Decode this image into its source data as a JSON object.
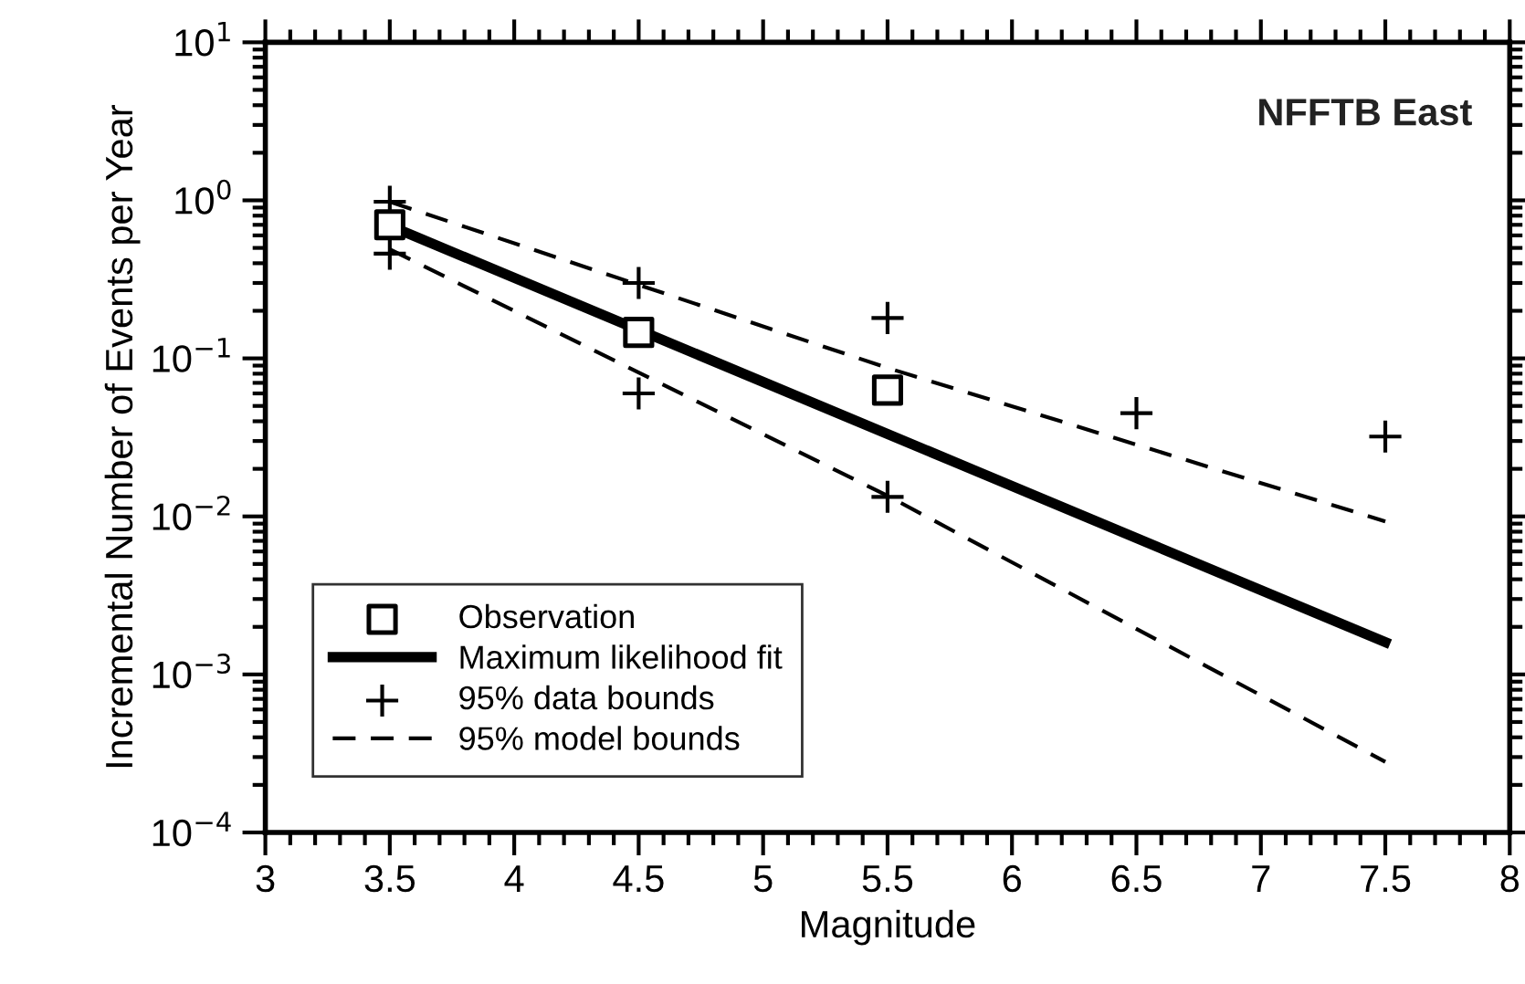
{
  "chart_data": {
    "type": "line",
    "xlabel": "Magnitude",
    "ylabel": "Incremental Number of Events per Year",
    "log": "y",
    "xlim": [
      3,
      8
    ],
    "xticks": [
      3,
      3.5,
      4,
      4.5,
      5,
      5.5,
      6,
      6.5,
      7,
      7.5,
      8
    ],
    "ylim": [
      0.0001,
      10
    ],
    "yticks": [
      {
        "value": 0.0001,
        "label": "10$^{−4}$"
      },
      {
        "value": 0.001,
        "label": "10$^{−3}$"
      },
      {
        "value": 0.01,
        "label": "10$^{−2}$"
      },
      {
        "value": 0.1,
        "label": "10$^{−1}$"
      },
      {
        "value": 1,
        "label": "10$^{0}$"
      },
      {
        "value": 10,
        "label": "10$^{1}$"
      }
    ],
    "grid": false,
    "legend": "bottom left",
    "annotations": [
      "NFFTB East"
    ],
    "series": [
      {
        "name": "Observation",
        "type": "scatter",
        "marker": "square",
        "color": "#000000",
        "x": [
          3.5,
          4.5,
          5.5
        ],
        "values": [
          0.7,
          0.146,
          0.063
        ]
      },
      {
        "name": "Maximum likelihood fit",
        "marker": "none",
        "line_style": "solid",
        "color": "#000000",
        "x": [
          3.5,
          7.5
        ],
        "values": [
          0.69,
          0.0016
        ]
      },
      {
        "name": "95% data bounds",
        "type": "scatter",
        "marker": "cross",
        "color": "#000000",
        "x": [
          3.5,
          3.5,
          4.5,
          4.5,
          5.5,
          5.5,
          6.5,
          7.5
        ],
        "values": [
          0.98,
          0.46,
          0.3,
          0.06,
          0.18,
          0.0133,
          0.045,
          0.032
        ]
      },
      {
        "name": "95% model bounds",
        "marker": "none",
        "line_style": "dashed",
        "color": "#000000",
        "x": [
          3.5,
          5.5,
          7.5
        ],
        "values": [
          0.98,
          0.087,
          0.0093
        ]
      },
      {
        "marker": "none",
        "line_style": "dashed",
        "color": "#000000",
        "x": [
          3.5,
          5.5,
          7.5
        ],
        "values": [
          0.49,
          0.0135,
          0.00028
        ]
      }
    ]
  }
}
